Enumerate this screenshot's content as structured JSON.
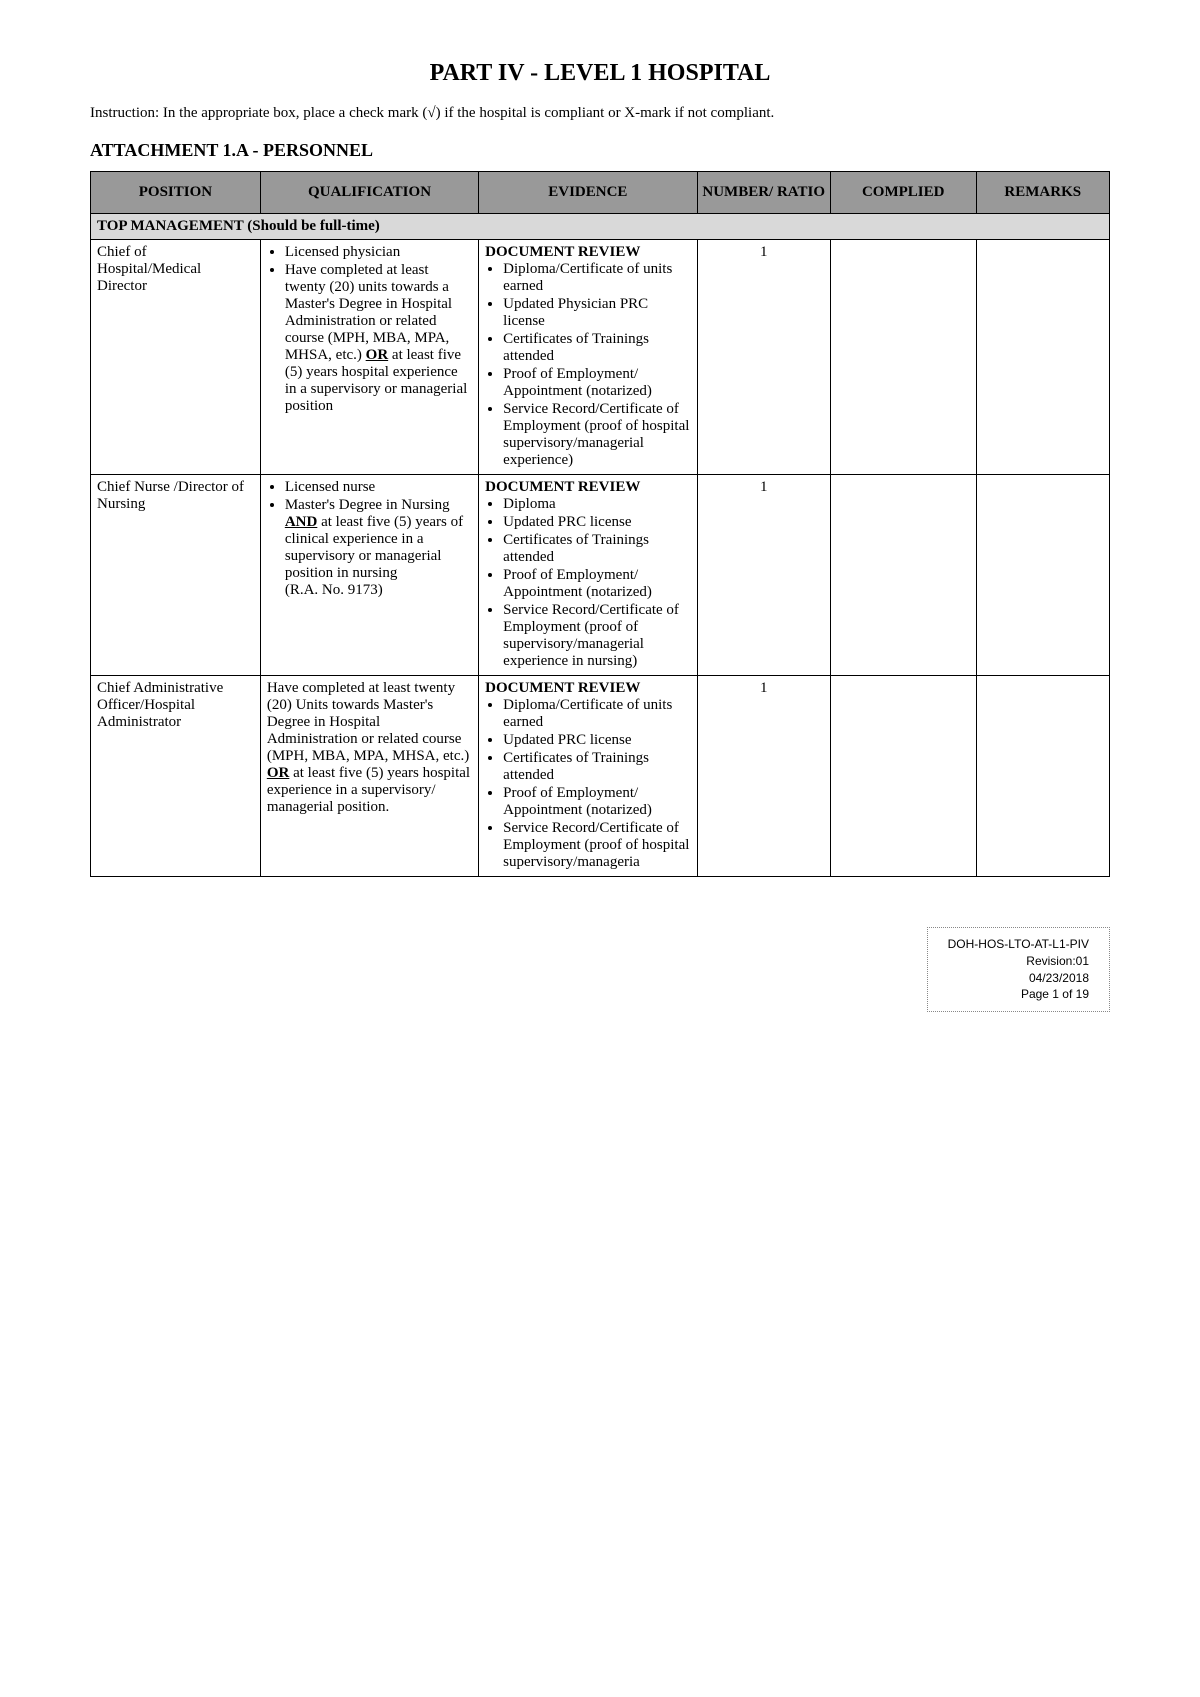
{
  "title": "PART IV - LEVEL 1 HOSPITAL",
  "instruction": "Instruction: In the appropriate box, place a check mark (√) if the hospital is compliant or X-mark if not compliant.",
  "attachment": "ATTACHMENT 1.A - PERSONNEL",
  "headers": {
    "position": "POSITION",
    "qualification": "QUALIFICATION",
    "evidence": "EVIDENCE",
    "number": "NUMBER/ RATIO",
    "complied": "COMPLIED",
    "remarks": "REMARKS"
  },
  "section": "TOP MANAGEMENT (Should be full-time)",
  "rows": [
    {
      "position": "Chief of Hospital/Medical Director",
      "qual_type": "list",
      "qualification_items": [
        "Licensed physician",
        "Have completed at least twenty (20) units towards a Master's Degree in Hospital Administration or related course (MPH, MBA, MPA, MHSA, etc.) <b><u>OR</u></b> at least five (5) years hospital experience in a supervisory or managerial position"
      ],
      "evidence_title": "DOCUMENT REVIEW",
      "evidence_items": [
        "Diploma/Certificate of units earned",
        "Updated Physician PRC license",
        "Certificates of Trainings attended",
        "Proof of Employment/ Appointment (notarized)",
        "Service Record/Certificate of Employment (proof of hospital supervisory/managerial experience)"
      ],
      "number": "1",
      "complied": "",
      "remarks": ""
    },
    {
      "position": "Chief Nurse /Director of Nursing",
      "qual_type": "list",
      "qualification_items": [
        "Licensed nurse",
        "Master's Degree in Nursing <b><u>AND</u></b> at least five (5) years of clinical experience in a supervisory or managerial position in nursing<br>(R.A. No. 9173)"
      ],
      "evidence_title": "DOCUMENT REVIEW",
      "evidence_items": [
        "Diploma",
        "Updated PRC license",
        "Certificates of Trainings attended",
        "Proof of Employment/ Appointment (notarized)",
        "Service Record/Certificate of Employment (proof of supervisory/managerial experience in nursing)"
      ],
      "number": "1",
      "complied": "",
      "remarks": ""
    },
    {
      "position": "Chief Administrative Officer/Hospital Administrator",
      "qual_type": "text",
      "qualification_text": "Have completed at least twenty (20) Units towards Master's Degree in Hospital Administration or related course (MPH, MBA, MPA, MHSA, etc.)  <b><u>OR</u></b> at least five (5) years hospital experience in a supervisory/ managerial position.",
      "evidence_title": "DOCUMENT REVIEW",
      "evidence_items": [
        "Diploma/Certificate of units earned",
        "Updated PRC license",
        "Certificates of Trainings attended",
        "Proof of Employment/ Appointment (notarized)",
        "Service Record/Certificate of Employment (proof of hospital supervisory/manageria"
      ],
      "number": "1",
      "complied": "",
      "remarks": ""
    }
  ],
  "footer": {
    "code": "DOH-HOS-LTO-AT-L1-PIV",
    "revision": "Revision:01",
    "date": "04/23/2018",
    "page": "Page 1 of 19"
  }
}
